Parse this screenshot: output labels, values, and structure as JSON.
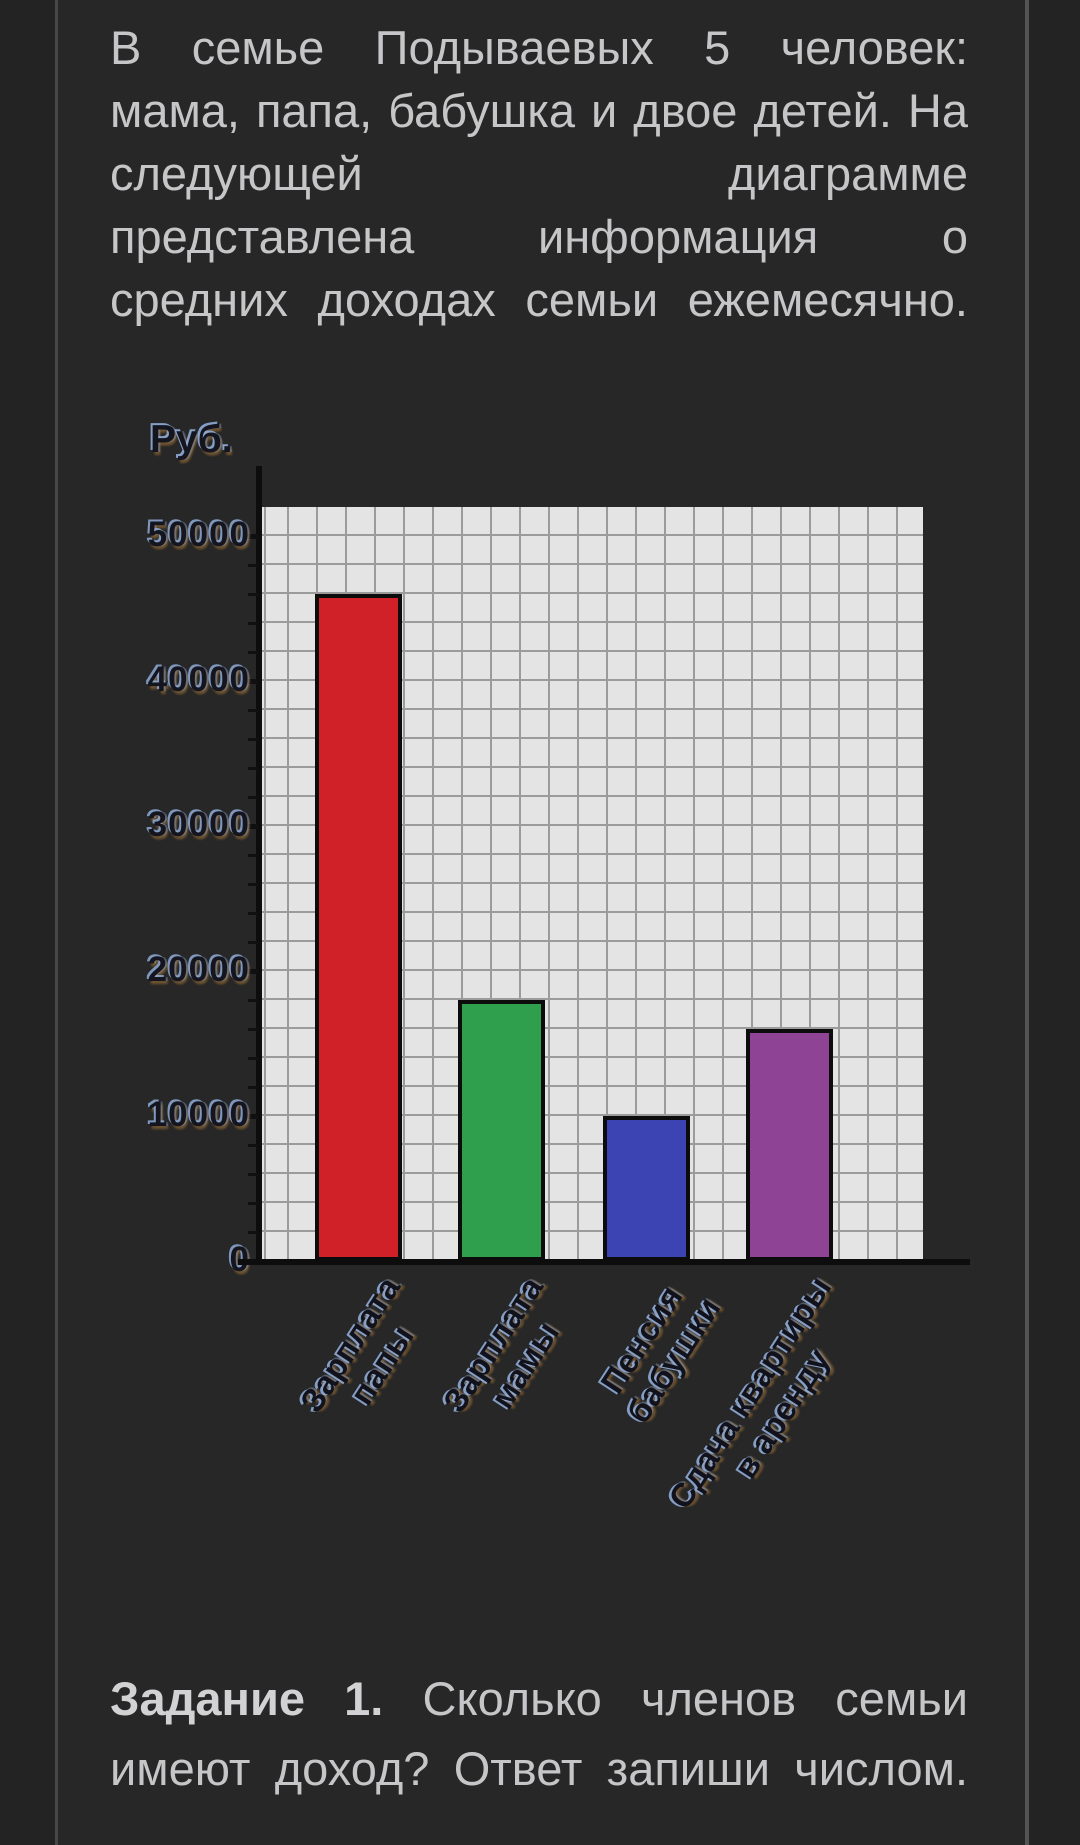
{
  "page": {
    "intro_lines": [
      "В семье Подываевых 5 человек:",
      "мама, папа, бабушка и двое детей. На",
      "следующей диаграмме",
      "представлена информация о",
      "средних доходах семьи ежемесячно."
    ],
    "task": {
      "label_bold": "Задание 1.",
      "line1_rest": "Сколько членов семьи",
      "line2": "имеют доход? Ответ запиши числом."
    }
  },
  "chart_data": {
    "type": "bar",
    "title": "",
    "ylabel": "Руб.",
    "xlabel": "",
    "categories": [
      [
        "Зарплата",
        "папы"
      ],
      [
        "Зарплата",
        "мамы"
      ],
      [
        "Пенсия",
        "бабушки"
      ],
      [
        "Сдача квартиры",
        "в аренду"
      ]
    ],
    "values": [
      46000,
      18000,
      10000,
      16000
    ],
    "colors": [
      "#cf2127",
      "#2f9e4d",
      "#3c44b4",
      "#8e4394"
    ],
    "yticks": [
      0,
      10000,
      20000,
      30000,
      40000,
      50000
    ],
    "ylim": [
      0,
      52000
    ],
    "grid": true,
    "legend": "none",
    "plot_bg": "#e4e4e4",
    "grid_color": "#9b9b9b"
  }
}
